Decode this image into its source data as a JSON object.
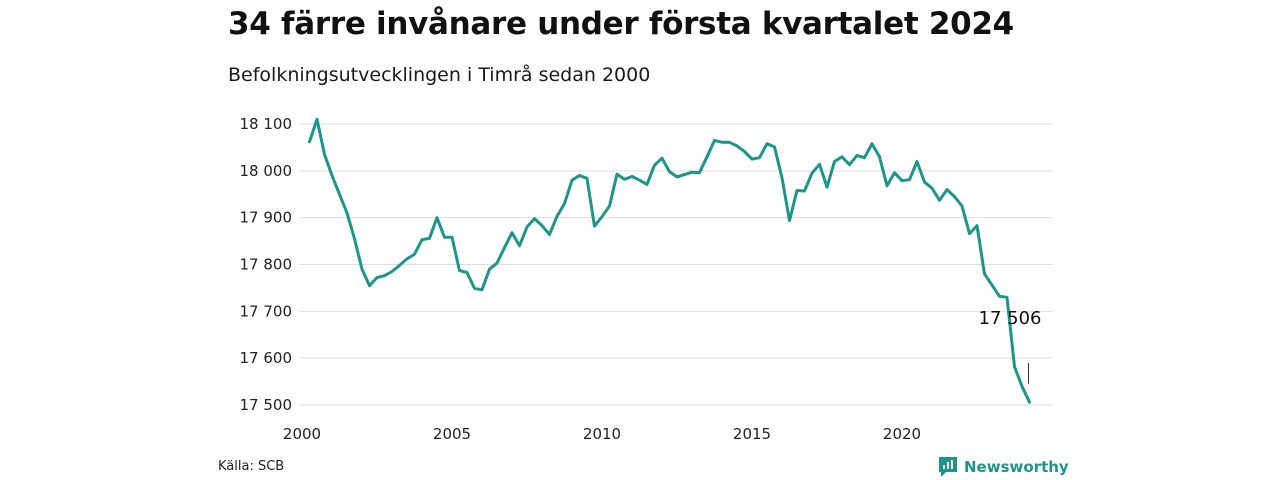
{
  "header": {
    "title": "34 färre invånare under första kvartalet 2024",
    "subtitle": "Befolkningsutvecklingen i Timrå sedan 2000"
  },
  "footer": {
    "source": "Källa: SCB",
    "brand": "Newsworthy"
  },
  "colors": {
    "line": "#1b9688",
    "grid": "#dddddd",
    "brand": "#1b9688"
  },
  "chart_data": {
    "type": "line",
    "title": "34 färre invånare under första kvartalet 2024",
    "subtitle": "Befolkningsutvecklingen i Timrå sedan 2000",
    "xlabel": "",
    "ylabel": "",
    "xlim": [
      2000,
      2025
    ],
    "ylim": [
      17500,
      18100
    ],
    "y_ticks": [
      17500,
      17600,
      17700,
      17800,
      17900,
      18000,
      18100
    ],
    "y_tick_labels": [
      "17 500",
      "17 600",
      "17 700",
      "17 800",
      "17 900",
      "18 000",
      "18 100"
    ],
    "x_ticks": [
      2000,
      2005,
      2010,
      2015,
      2020
    ],
    "x_tick_labels": [
      "2000",
      "2005",
      "2010",
      "2015",
      "2020"
    ],
    "grid": "horizontal",
    "last_value_label": "17 506",
    "series": [
      {
        "x": [
          2000.25,
          2000.5,
          2000.75,
          2001.0,
          2001.25,
          2001.5,
          2001.75,
          2002.0,
          2002.25,
          2002.5,
          2002.75,
          2003.0,
          2003.25,
          2003.5,
          2003.75,
          2004.0,
          2004.25,
          2004.5,
          2004.75,
          2005.0,
          2005.25,
          2005.5,
          2005.75,
          2006.0,
          2006.25,
          2006.5,
          2006.75,
          2007.0,
          2007.25,
          2007.5,
          2007.75,
          2008.0,
          2008.25,
          2008.5,
          2008.75,
          2009.0,
          2009.25,
          2009.5,
          2009.75,
          2010.0,
          2010.25,
          2010.5,
          2010.75,
          2011.0,
          2011.25,
          2011.5,
          2011.75,
          2012.0,
          2012.25,
          2012.5,
          2012.75,
          2013.0,
          2013.25,
          2013.5,
          2013.75,
          2014.0,
          2014.25,
          2014.5,
          2014.75,
          2015.0,
          2015.25,
          2015.5,
          2015.75,
          2016.0,
          2016.25,
          2016.5,
          2016.75,
          2017.0,
          2017.25,
          2017.5,
          2017.75,
          2018.0,
          2018.25,
          2018.5,
          2018.75,
          2019.0,
          2019.25,
          2019.5,
          2019.75,
          2020.0,
          2020.25,
          2020.5,
          2020.75,
          2021.0,
          2021.25,
          2021.5,
          2021.75,
          2022.0,
          2022.25,
          2022.5,
          2022.75,
          2023.0,
          2023.25,
          2023.5,
          2023.75,
          2024.0,
          2024.25
        ],
        "values": [
          18062,
          18110,
          18035,
          17990,
          17950,
          17910,
          17855,
          17790,
          17755,
          17772,
          17776,
          17785,
          17798,
          17812,
          17822,
          17853,
          17856,
          17900,
          17858,
          17858,
          17787,
          17783,
          17749,
          17746,
          17790,
          17803,
          17836,
          17868,
          17840,
          17880,
          17898,
          17883,
          17864,
          17903,
          17930,
          17980,
          17990,
          17984,
          17882,
          17902,
          17925,
          17993,
          17982,
          17988,
          17980,
          17971,
          18012,
          18027,
          17998,
          17987,
          17992,
          17997,
          17996,
          18030,
          18065,
          18061,
          18061,
          18053,
          18041,
          18025,
          18028,
          18058,
          18051,
          17985,
          17894,
          17958,
          17957,
          17995,
          18014,
          17965,
          18020,
          18030,
          18013,
          18033,
          18028,
          18058,
          18030,
          17968,
          17996,
          17979,
          17981,
          18020,
          17976,
          17963,
          17937,
          17960,
          17945,
          17925,
          17866,
          17883,
          17780,
          17756,
          17732,
          17730,
          17582,
          17540,
          17506
        ]
      }
    ]
  }
}
